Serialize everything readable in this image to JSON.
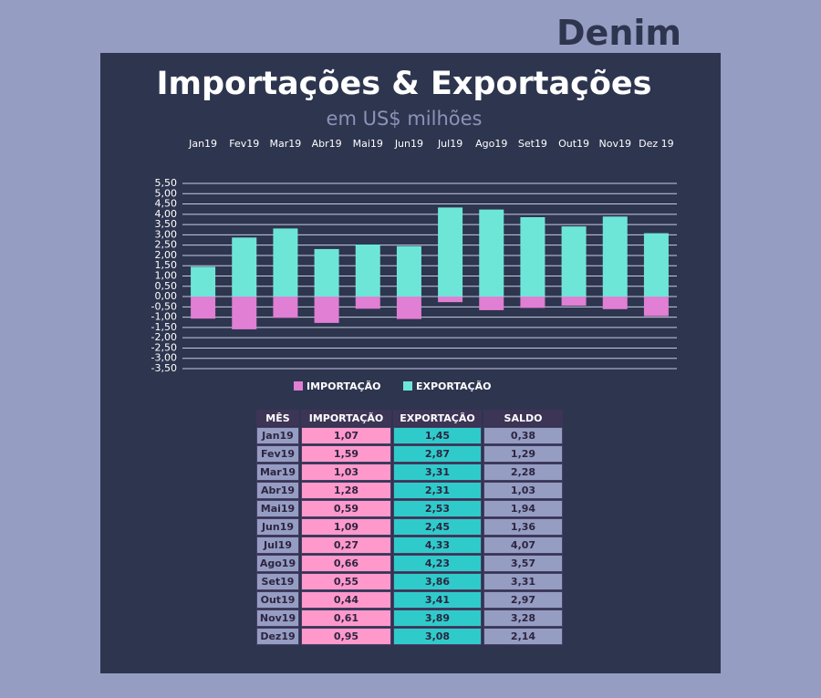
{
  "brand": "Denim",
  "chart_data": {
    "type": "bar",
    "title": "Importações & Exportações",
    "subtitle": "em US$ milhões",
    "categories": [
      "Jan19",
      "Fev19",
      "Mar19",
      "Abr19",
      "Mai19",
      "Jun19",
      "Jul19",
      "Ago19",
      "Set19",
      "Out19",
      "Nov19",
      "Dez 19"
    ],
    "series": [
      {
        "name": "IMPORTAÇÃO",
        "color": "#e07fd3",
        "values": [
          -1.07,
          -1.59,
          -1.03,
          -1.28,
          -0.59,
          -1.09,
          -0.27,
          -0.66,
          -0.55,
          -0.44,
          -0.61,
          -0.95
        ]
      },
      {
        "name": "EXPORTAÇÃO",
        "color": "#6de6d8",
        "values": [
          1.45,
          2.87,
          3.31,
          2.31,
          2.53,
          2.45,
          4.33,
          4.23,
          3.86,
          3.41,
          3.89,
          3.08
        ]
      }
    ],
    "ylim": [
      -3.5,
      5.5
    ],
    "yticks": [
      {
        "value": 5.5,
        "label": "5,50"
      },
      {
        "value": 5,
        "label": "5,00"
      },
      {
        "value": 4.5,
        "label": "4,50"
      },
      {
        "value": 4,
        "label": "4,00"
      },
      {
        "value": 3.5,
        "label": "3,50"
      },
      {
        "value": 3,
        "label": "3,00"
      },
      {
        "value": 2.5,
        "label": "2,50"
      },
      {
        "value": 2,
        "label": "2,00"
      },
      {
        "value": 1.5,
        "label": "1,50"
      },
      {
        "value": 1,
        "label": "1,00"
      },
      {
        "value": 0.5,
        "label": "0,50"
      },
      {
        "value": 0,
        "label": "0,00"
      },
      {
        "value": -0.5,
        "label": "-0,50"
      },
      {
        "value": -1,
        "label": "-1,00"
      },
      {
        "value": -1.5,
        "label": "-1,50"
      },
      {
        "value": -2,
        "label": "-2,00"
      },
      {
        "value": -2.5,
        "label": "-2,50"
      },
      {
        "value": -3,
        "label": "-3,00"
      },
      {
        "value": -3.5,
        "label": "-3,50"
      }
    ],
    "grid": true,
    "legend": "bottom"
  },
  "table": {
    "header": [
      "MÊS",
      "IMPORTAÇÃO",
      "EXPORTAÇÃO",
      "SALDO"
    ],
    "rows": [
      [
        "Jan19",
        "1,07",
        "1,45",
        "0,38"
      ],
      [
        "Fev19",
        "1,59",
        "2,87",
        "1,29"
      ],
      [
        "Mar19",
        "1,03",
        "3,31",
        "2,28"
      ],
      [
        "Abr19",
        "1,28",
        "2,31",
        "1,03"
      ],
      [
        "Mai19",
        "0,59",
        "2,53",
        "1,94"
      ],
      [
        "Jun19",
        "1,09",
        "2,45",
        "1,36"
      ],
      [
        "Jul19",
        "0,27",
        "4,33",
        "4,07"
      ],
      [
        "Ago19",
        "0,66",
        "4,23",
        "3,57"
      ],
      [
        "Set19",
        "0,55",
        "3,86",
        "3,31"
      ],
      [
        "Out19",
        "0,44",
        "3,41",
        "2,97"
      ],
      [
        "Nov19",
        "0,61",
        "3,89",
        "3,28"
      ],
      [
        "Dez19",
        "0,95",
        "3,08",
        "2,14"
      ]
    ]
  }
}
